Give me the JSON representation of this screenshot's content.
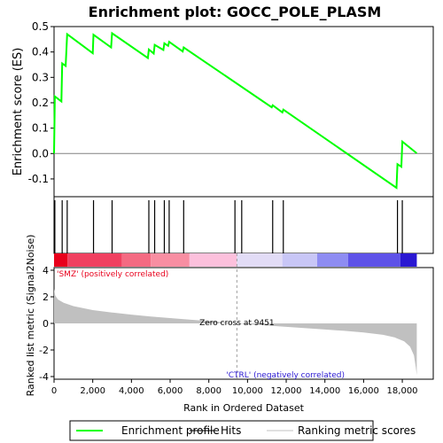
{
  "chart_data": {
    "type": "line",
    "title": "Enrichment plot: GOCC_POLE_PLASM",
    "top_panel": {
      "ylabel": "Enrichment score (ES)",
      "ylim": [
        -0.17,
        0.5
      ],
      "yticks": [
        -0.1,
        0.0,
        0.1,
        0.2,
        0.3,
        0.4,
        0.5
      ],
      "ytick_labels": [
        "-0.1",
        "0.0",
        "0.1",
        "0.2",
        "0.3",
        "0.4",
        "0.5"
      ],
      "series": [
        {
          "name": "Enrichment profile",
          "color": "#00ff00",
          "points": [
            [
              0,
              0.0
            ],
            [
              40,
              0.225
            ],
            [
              380,
              0.205
            ],
            [
              420,
              0.355
            ],
            [
              600,
              0.345
            ],
            [
              680,
              0.47
            ],
            [
              2000,
              0.395
            ],
            [
              2040,
              0.468
            ],
            [
              2950,
              0.418
            ],
            [
              3000,
              0.474
            ],
            [
              4850,
              0.376
            ],
            [
              4900,
              0.41
            ],
            [
              5150,
              0.394
            ],
            [
              5200,
              0.428
            ],
            [
              5650,
              0.408
            ],
            [
              5700,
              0.434
            ],
            [
              5900,
              0.424
            ],
            [
              5950,
              0.44
            ],
            [
              6650,
              0.402
            ],
            [
              6700,
              0.418
            ],
            [
              11250,
              0.182
            ],
            [
              11300,
              0.19
            ],
            [
              11800,
              0.162
            ],
            [
              11850,
              0.173
            ],
            [
              17700,
              -0.135
            ],
            [
              17750,
              -0.042
            ],
            [
              17950,
              -0.052
            ],
            [
              18000,
              0.047
            ],
            [
              18750,
              0.001
            ]
          ]
        }
      ]
    },
    "hits": [
      40,
      420,
      680,
      2040,
      3000,
      4900,
      5200,
      5700,
      5950,
      6700,
      9350,
      9700,
      11300,
      11850,
      17750,
      18000
    ],
    "color_bar": {
      "label_positive": "'SMZ' (positively correlated)",
      "label_negative": "'CTRL' (negatively correlated)",
      "segments": [
        {
          "from": 0,
          "to": 700,
          "color": "#e8001c"
        },
        {
          "from": 700,
          "to": 3500,
          "color": "#f04060"
        },
        {
          "from": 3500,
          "to": 5000,
          "color": "#f46a82"
        },
        {
          "from": 5000,
          "to": 7000,
          "color": "#f88ea2"
        },
        {
          "from": 7000,
          "to": 9450,
          "color": "#fcc0dc"
        },
        {
          "from": 9450,
          "to": 11800,
          "color": "#e2dcf6"
        },
        {
          "from": 11800,
          "to": 13600,
          "color": "#c8c6f6"
        },
        {
          "from": 13600,
          "to": 15200,
          "color": "#8e8cf2"
        },
        {
          "from": 15200,
          "to": 17900,
          "color": "#5e52e8"
        },
        {
          "from": 17900,
          "to": 18750,
          "color": "#2a18d2"
        }
      ]
    },
    "bottom_panel": {
      "ylabel": "Ranked list metric (Signal2Noise)",
      "xlabel": "Rank in Ordered Dataset",
      "ylim": [
        -4.2,
        4.2
      ],
      "yticks": [
        -4,
        -2,
        0,
        2,
        4
      ],
      "ytick_labels": [
        "-4",
        "-2",
        "0",
        "2",
        "4"
      ],
      "zero_cross_label": "Zero cross at 9451",
      "zero_cross": 9451,
      "metric_profile": [
        [
          0,
          2.6
        ],
        [
          60,
          2.1
        ],
        [
          200,
          1.8
        ],
        [
          500,
          1.55
        ],
        [
          1000,
          1.3
        ],
        [
          2000,
          1.0
        ],
        [
          3000,
          0.82
        ],
        [
          4000,
          0.66
        ],
        [
          5000,
          0.52
        ],
        [
          6000,
          0.4
        ],
        [
          7000,
          0.28
        ],
        [
          8000,
          0.17
        ],
        [
          9000,
          0.06
        ],
        [
          9451,
          0.0
        ],
        [
          10000,
          -0.06
        ],
        [
          11000,
          -0.16
        ],
        [
          12000,
          -0.26
        ],
        [
          13000,
          -0.36
        ],
        [
          14000,
          -0.46
        ],
        [
          15000,
          -0.56
        ],
        [
          16000,
          -0.68
        ],
        [
          17000,
          -0.86
        ],
        [
          17600,
          -1.05
        ],
        [
          18100,
          -1.35
        ],
        [
          18400,
          -1.75
        ],
        [
          18600,
          -2.4
        ],
        [
          18700,
          -3.3
        ],
        [
          18750,
          -3.9
        ]
      ]
    },
    "xaxis": {
      "xlim": [
        0,
        19600
      ],
      "xticks": [
        0,
        2000,
        4000,
        6000,
        8000,
        10000,
        12000,
        14000,
        16000,
        18000
      ],
      "xtick_labels": [
        "0",
        "2,000",
        "4,000",
        "6,000",
        "8,000",
        "10,000",
        "12,000",
        "14,000",
        "16,000",
        "18,000"
      ]
    },
    "legend": {
      "placement": "bottom",
      "items": [
        {
          "label": "Enrichment profile",
          "color": "#00ff00"
        },
        {
          "label": "Hits",
          "color": "#000000"
        },
        {
          "label": "Ranking metric scores",
          "color": "#c0c0c0"
        }
      ]
    }
  }
}
